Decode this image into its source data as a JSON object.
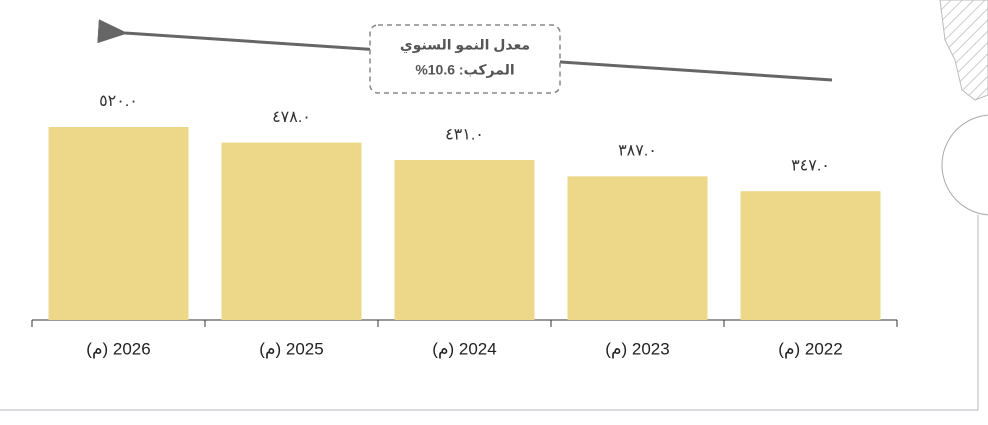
{
  "chart_data": {
    "type": "bar",
    "categories": [
      "2026 (م)",
      "2025 (م)",
      "2024 (م)",
      "2023 (م)",
      "2022 (م)"
    ],
    "values": [
      520,
      478,
      431,
      387,
      347
    ],
    "value_labels": [
      "٥٢٠.٠",
      "٤٧٨.٠",
      "٤٣١.٠",
      "٣٨٧.٠",
      "٣٤٧.٠"
    ],
    "color": "#ecd888",
    "annotation": [
      "معدل النمو السنوي",
      "المركب: 10.6%"
    ]
  }
}
